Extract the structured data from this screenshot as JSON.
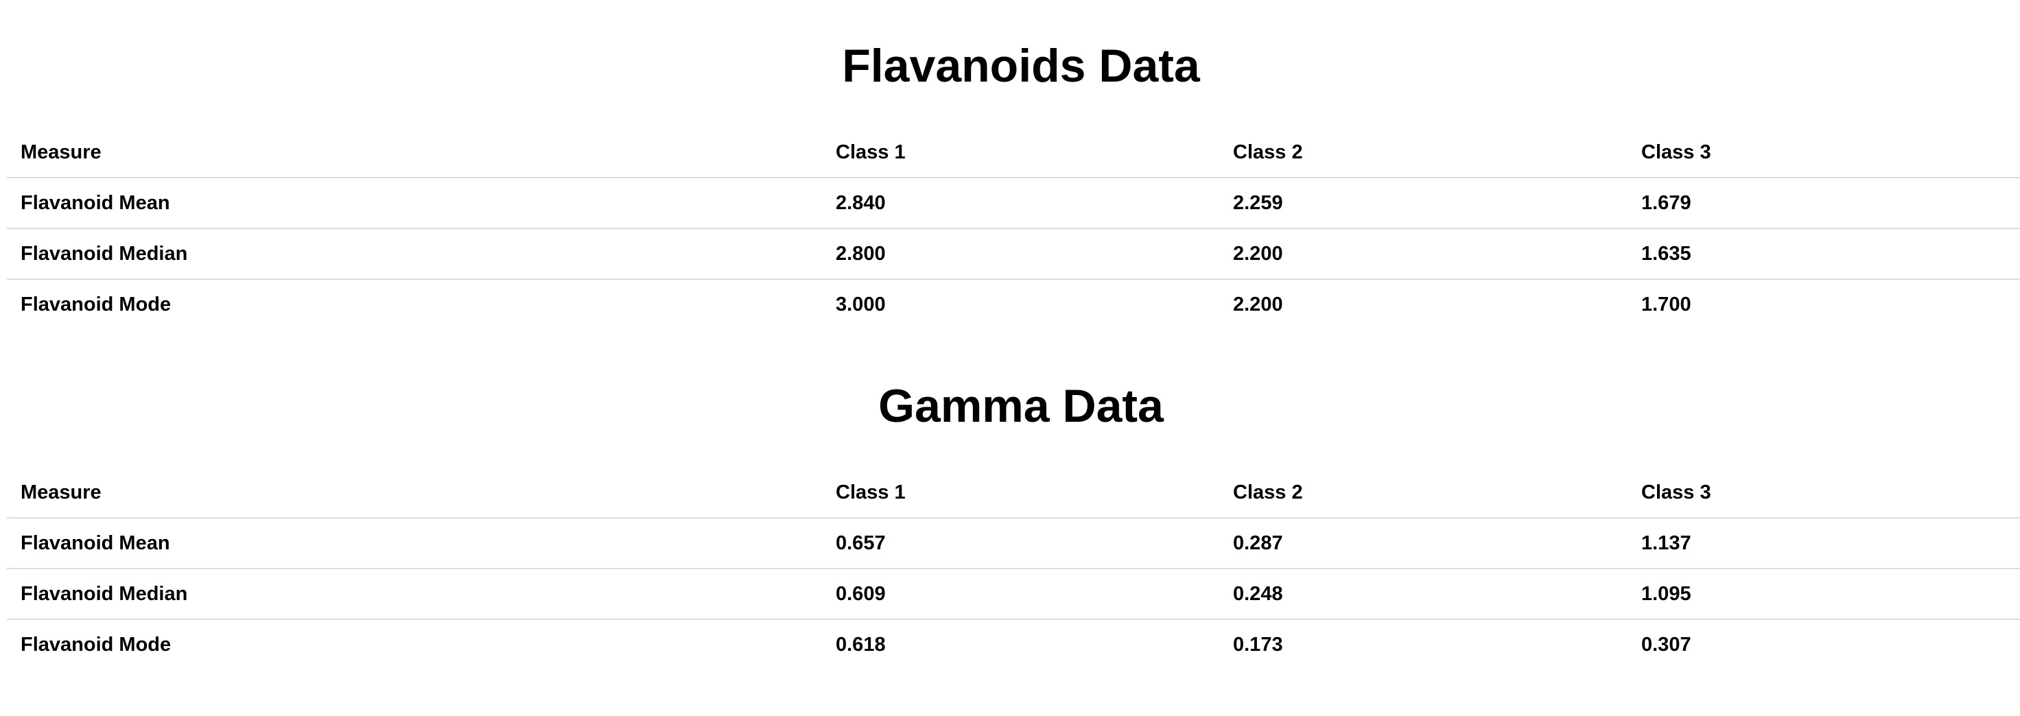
{
  "sections": [
    {
      "title": "Flavanoids Data",
      "headers": [
        "Measure",
        "Class 1",
        "Class 2",
        "Class 3"
      ],
      "rows": [
        [
          "Flavanoid Mean",
          "2.840",
          "2.259",
          "1.679"
        ],
        [
          "Flavanoid Median",
          "2.800",
          "2.200",
          "1.635"
        ],
        [
          "Flavanoid Mode",
          "3.000",
          "2.200",
          "1.700"
        ]
      ]
    },
    {
      "title": "Gamma Data",
      "headers": [
        "Measure",
        "Class 1",
        "Class 2",
        "Class 3"
      ],
      "rows": [
        [
          "Flavanoid Mean",
          "0.657",
          "0.287",
          "1.137"
        ],
        [
          "Flavanoid Median",
          "0.609",
          "0.248",
          "1.095"
        ],
        [
          "Flavanoid Mode",
          "0.618",
          "0.173",
          "0.307"
        ]
      ]
    }
  ]
}
